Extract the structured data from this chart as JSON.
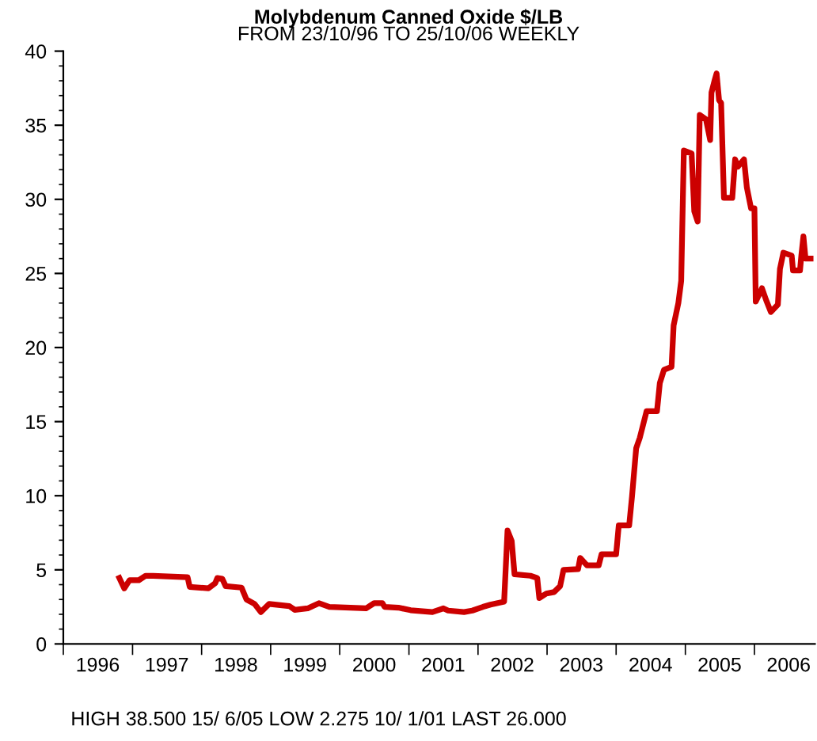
{
  "chart_data": {
    "type": "line",
    "title": "Molybdenum Canned Oxide $/LB",
    "subtitle": "FROM 23/10/96 TO 25/10/06 WEEKLY",
    "annotations": [
      "HIGH 38.500 15/ 6/05 LOW 2.275 10/ 1/01 LAST 26.000"
    ],
    "x": [
      "1996-10-23",
      "1996-11-18",
      "1996-12-16",
      "1997-02-03",
      "1997-03-11",
      "1997-04-20",
      "1997-10-19",
      "1997-10-30",
      "1998-02-06",
      "1998-03-14",
      "1998-03-25",
      "1998-04-20",
      "1998-05-08",
      "1998-07-31",
      "1998-08-26",
      "1998-10-08",
      "1998-11-10",
      "1998-12-24",
      "1999-04-10",
      "1999-05-08",
      "1999-07-16",
      "1999-09-13",
      "1999-11-07",
      "2000-05-19",
      "2000-07-01",
      "2000-08-14",
      "2000-08-25",
      "2000-11-06",
      "2001-01-10",
      "2001-05-05",
      "2001-07-02",
      "2001-07-27",
      "2001-10-19",
      "2001-12-02",
      "2002-01-27",
      "2002-03-08",
      "2002-05-19",
      "2002-06-06",
      "2002-06-28",
      "2002-07-13",
      "2002-10-05",
      "2002-11-10",
      "2002-11-21",
      "2002-12-28",
      "2003-02-07",
      "2003-03-11",
      "2003-03-29",
      "2003-06-14",
      "2003-06-25",
      "2003-07-31",
      "2003-10-01",
      "2003-10-16",
      "2004-01-01",
      "2004-01-15",
      "2004-03-10",
      "2004-03-25",
      "2004-04-16",
      "2004-05-05",
      "2004-06-10",
      "2004-08-04",
      "2004-08-19",
      "2004-09-10",
      "2004-10-20",
      "2004-10-31",
      "2004-11-25",
      "2004-12-10",
      "2004-12-24",
      "2005-02-03",
      "2005-02-17",
      "2005-03-07",
      "2005-03-18",
      "2005-04-20",
      "2005-05-12",
      "2005-05-19",
      "2005-06-06",
      "2005-06-15",
      "2005-06-28",
      "2005-07-09",
      "2005-07-24",
      "2005-09-06",
      "2005-09-21",
      "2005-10-05",
      "2005-11-07",
      "2005-11-22",
      "2005-12-14",
      "2006-01-01",
      "2006-01-08",
      "2006-01-23",
      "2006-02-10",
      "2006-03-04",
      "2006-03-29",
      "2006-05-05",
      "2006-05-16",
      "2006-06-03",
      "2006-07-17",
      "2006-07-24",
      "2006-08-30",
      "2006-09-06",
      "2006-09-17",
      "2006-09-28",
      "2006-10-25"
    ],
    "series": [
      {
        "color": "#cc0000",
        "values": [
          4.45,
          3.75,
          4.3,
          4.3,
          4.6,
          4.6,
          4.5,
          3.85,
          3.75,
          4.1,
          4.45,
          4.4,
          3.9,
          3.8,
          3.0,
          2.7,
          2.15,
          2.7,
          2.55,
          2.3,
          2.4,
          2.75,
          2.5,
          2.4,
          2.75,
          2.75,
          2.5,
          2.45,
          2.275,
          2.15,
          2.4,
          2.25,
          2.15,
          2.25,
          2.5,
          2.65,
          2.85,
          7.65,
          6.95,
          4.7,
          4.6,
          4.45,
          3.1,
          3.4,
          3.5,
          3.9,
          5.0,
          5.05,
          5.8,
          5.3,
          5.3,
          6.05,
          6.05,
          8.0,
          8.0,
          9.95,
          13.2,
          13.9,
          15.7,
          15.7,
          17.6,
          18.5,
          18.7,
          21.5,
          23.0,
          24.5,
          33.3,
          33.1,
          29.2,
          28.5,
          35.7,
          35.4,
          34.0,
          37.2,
          38.1,
          38.5,
          36.7,
          36.5,
          30.1,
          30.1,
          32.7,
          32.2,
          32.7,
          30.8,
          29.4,
          29.4,
          23.1,
          23.5,
          24.0,
          23.2,
          22.4,
          22.9,
          25.3,
          26.4,
          26.2,
          25.2,
          25.2,
          26.2,
          27.5,
          26.0,
          26.0
        ]
      }
    ],
    "xlim": [
      "1996-01-01",
      "2006-11-17"
    ],
    "xticks": [
      {
        "value": "1996-01-01",
        "label": null
      },
      {
        "value": "1996-07-01",
        "label": "1996"
      },
      {
        "value": "1997-01-01",
        "label": null
      },
      {
        "value": "1997-07-01",
        "label": "1997"
      },
      {
        "value": "1998-01-01",
        "label": null
      },
      {
        "value": "1998-07-01",
        "label": "1998"
      },
      {
        "value": "1999-01-01",
        "label": null
      },
      {
        "value": "1999-07-01",
        "label": "1999"
      },
      {
        "value": "2000-01-01",
        "label": null
      },
      {
        "value": "2000-07-01",
        "label": "2000"
      },
      {
        "value": "2001-01-01",
        "label": null
      },
      {
        "value": "2001-07-01",
        "label": "2001"
      },
      {
        "value": "2002-01-01",
        "label": null
      },
      {
        "value": "2002-07-01",
        "label": "2002"
      },
      {
        "value": "2003-01-01",
        "label": null
      },
      {
        "value": "2003-07-01",
        "label": "2003"
      },
      {
        "value": "2004-01-01",
        "label": null
      },
      {
        "value": "2004-07-01",
        "label": "2004"
      },
      {
        "value": "2005-01-01",
        "label": null
      },
      {
        "value": "2005-07-01",
        "label": "2005"
      },
      {
        "value": "2006-01-01",
        "label": null
      },
      {
        "value": "2006-07-01",
        "label": "2006"
      }
    ],
    "ylim": [
      0,
      40
    ],
    "yticks": [
      0,
      5,
      10,
      15,
      20,
      25,
      30,
      35,
      40
    ],
    "grid": false,
    "legend": false,
    "marker": "none",
    "line_style": "solid"
  }
}
